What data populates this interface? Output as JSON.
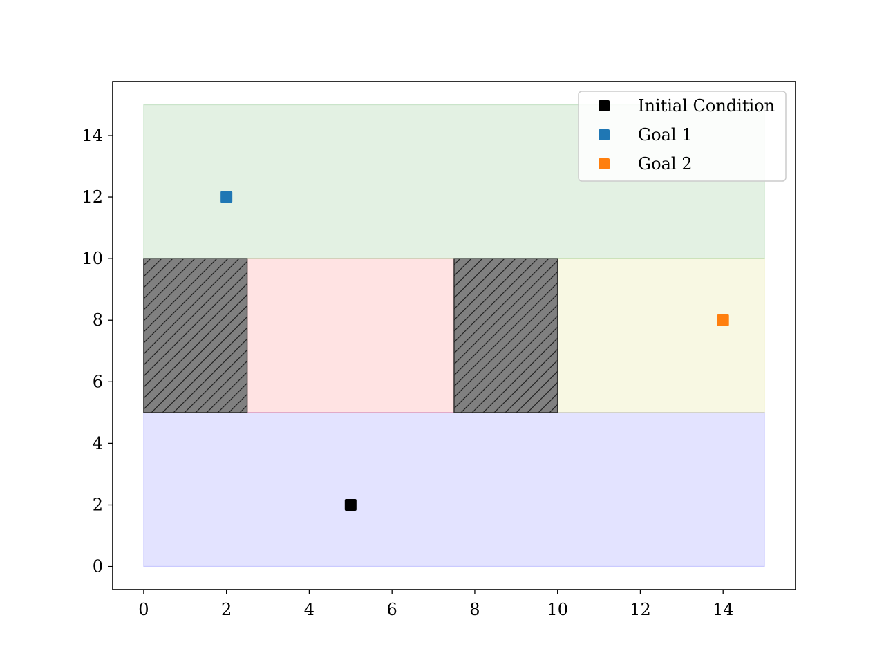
{
  "chart_data": {
    "type": "scatter",
    "title": "",
    "xlabel": "",
    "ylabel": "",
    "xlim": [
      -0.75,
      15.75
    ],
    "ylim": [
      -0.75,
      15.75
    ],
    "xticks": [
      0,
      2,
      4,
      6,
      8,
      10,
      12,
      14
    ],
    "yticks": [
      0,
      2,
      4,
      6,
      8,
      10,
      12,
      14
    ],
    "grid": false,
    "legend_position": "top-right",
    "regions": [
      {
        "x0": 0,
        "x1": 15,
        "y0": 0,
        "y1": 5,
        "color": "#0000ff",
        "alpha": 0.11,
        "hatched": false
      },
      {
        "x0": 0,
        "x1": 15,
        "y0": 10,
        "y1": 15,
        "color": "#008000",
        "alpha": 0.11,
        "hatched": false
      },
      {
        "x0": 2.5,
        "x1": 7.5,
        "y0": 5,
        "y1": 10,
        "color": "#ff0000",
        "alpha": 0.11,
        "hatched": false
      },
      {
        "x0": 10,
        "x1": 15,
        "y0": 5,
        "y1": 10,
        "color": "#bfbf00",
        "alpha": 0.11,
        "hatched": false
      },
      {
        "x0": 0,
        "x1": 2.5,
        "y0": 5,
        "y1": 10,
        "color": "#808080",
        "alpha": 1,
        "hatched": true
      },
      {
        "x0": 7.5,
        "x1": 10,
        "y0": 5,
        "y1": 10,
        "color": "#808080",
        "alpha": 1,
        "hatched": true
      }
    ],
    "series": [
      {
        "name": "Initial Condition",
        "marker": "square",
        "color": "#000000",
        "points": [
          {
            "x": 5,
            "y": 2
          }
        ]
      },
      {
        "name": "Goal 1",
        "marker": "square",
        "color": "#1f77b4",
        "points": [
          {
            "x": 2,
            "y": 12
          }
        ]
      },
      {
        "name": "Goal 2",
        "marker": "square",
        "color": "#ff7f0e",
        "points": [
          {
            "x": 14,
            "y": 8
          }
        ]
      }
    ]
  }
}
